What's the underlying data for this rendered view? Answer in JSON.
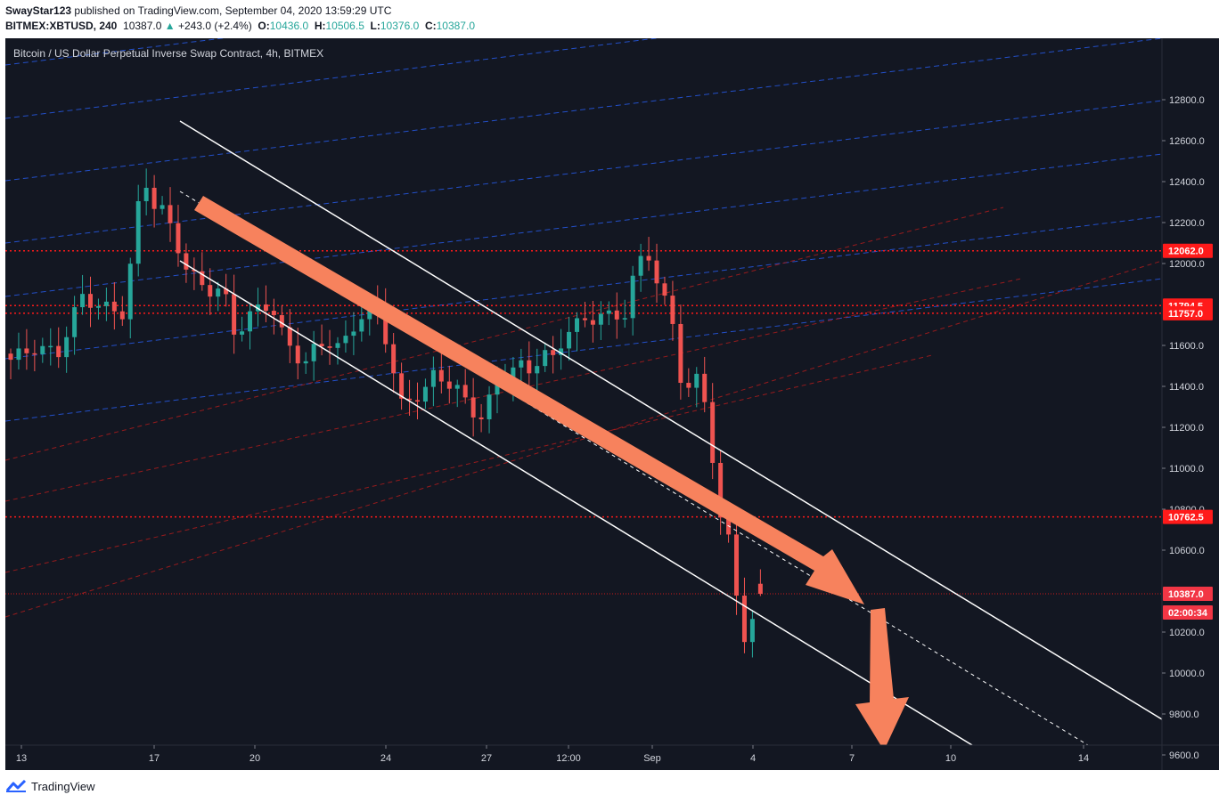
{
  "header": {
    "author": "SwayStar123",
    "published_text": " published on TradingView.com, September 04, 2020 13:59:29 UTC",
    "symbol": "BITMEX:XBTUSD, 240",
    "last_price": "10387.0",
    "change": "+243.0 (+2.4%)",
    "open_label": "O:",
    "open": "10436.0",
    "high_label": "H:",
    "high": "10506.5",
    "low_label": "L:",
    "low": "10376.0",
    "close_label": "C:",
    "close": "10387.0"
  },
  "footer": {
    "brand": "TradingView"
  },
  "colors": {
    "background": "#131722",
    "up": "#26a69a",
    "down": "#ef5350",
    "arrow": "#f7825d",
    "channel": "#ffffff",
    "fib_blue": "#2962ff",
    "fib_red": "#b71c1c",
    "level": "#ff1a1a",
    "price_label": "#f23645"
  },
  "chart_data": {
    "type": "candlestick",
    "title": "Bitcoin / US Dollar Perpetual Inverse Swap Contract, 4h, BITMEX",
    "y_ticks": [
      "12800.0",
      "12600.0",
      "12400.0",
      "12200.0",
      "12000.0",
      "11600.0",
      "11400.0",
      "11200.0",
      "11000.0",
      "10800.0",
      "10600.0",
      "10200.0",
      "10000.0",
      "9800.0",
      "9600.0"
    ],
    "x_ticks": [
      "13",
      "17",
      "20",
      "24",
      "27",
      "12:00",
      "Sep",
      "4",
      "7",
      "10",
      "14"
    ],
    "ylim": [
      9480,
      12890
    ],
    "levels": [
      {
        "label": "12062.0",
        "value": 12062.0
      },
      {
        "label": "11794.5",
        "value": 11794.5
      },
      {
        "label": "11757.0",
        "value": 11757.0
      },
      {
        "label": "10762.5",
        "value": 10762.5
      }
    ],
    "last_price": {
      "label": "10387.0",
      "value": 10387.0,
      "countdown": "02:00:34"
    },
    "ohlc_last": {
      "open": 10436.0,
      "high": 10506.5,
      "low": 10376.0,
      "close": 10387.0
    },
    "close_path": [
      [
        0,
        11530
      ],
      [
        2,
        11590
      ],
      [
        4,
        11560
      ],
      [
        6,
        11840
      ],
      [
        8,
        11780
      ],
      [
        9.6,
        11760
      ],
      [
        11.2,
        12440
      ],
      [
        12,
        12300
      ],
      [
        13,
        12250
      ],
      [
        14,
        12110
      ],
      [
        15,
        11960
      ],
      [
        16,
        11900
      ],
      [
        17,
        11870
      ],
      [
        18,
        11870
      ],
      [
        19,
        11650
      ],
      [
        20,
        11730
      ],
      [
        21,
        11780
      ],
      [
        22,
        11810
      ],
      [
        23,
        11650
      ],
      [
        24,
        11560
      ],
      [
        25,
        11520
      ],
      [
        26,
        11600
      ],
      [
        27,
        11620
      ],
      [
        28,
        11580
      ],
      [
        29,
        11690
      ],
      [
        30,
        11770
      ],
      [
        31,
        11790
      ],
      [
        32,
        11590
      ],
      [
        33,
        11300
      ],
      [
        34,
        11350
      ],
      [
        35,
        11370
      ],
      [
        36,
        11470
      ],
      [
        37,
        11420
      ],
      [
        38,
        11370
      ],
      [
        39,
        11290
      ],
      [
        40,
        11240
      ],
      [
        41,
        11400
      ],
      [
        42,
        11460
      ],
      [
        43,
        11500
      ],
      [
        44,
        11480
      ],
      [
        45,
        11560
      ],
      [
        46,
        11530
      ],
      [
        47,
        11670
      ],
      [
        48,
        11700
      ],
      [
        49,
        11730
      ],
      [
        50,
        11750
      ],
      [
        51,
        11730
      ],
      [
        52,
        11760
      ],
      [
        53,
        11990
      ],
      [
        54,
        12050
      ],
      [
        55,
        11870
      ],
      [
        56,
        11720
      ],
      [
        57,
        11360
      ],
      [
        58,
        11440
      ],
      [
        59,
        11300
      ],
      [
        60,
        10760
      ],
      [
        61,
        10620
      ],
      [
        62,
        10160
      ],
      [
        63,
        10250
      ],
      [
        63.5,
        10387
      ]
    ],
    "annotations": [
      "descending channel",
      "downtrend arrow",
      "drop arrow",
      "fibonacci channel"
    ]
  }
}
